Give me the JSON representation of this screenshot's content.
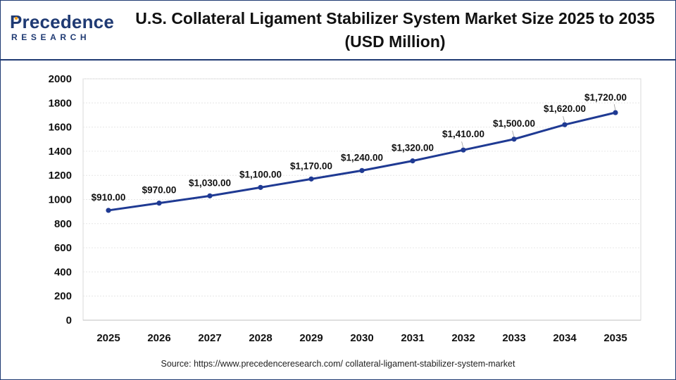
{
  "brand": {
    "name": "Precedence",
    "sub": "RESEARCH",
    "color": "#1f3a73",
    "accent": "#f5a21b"
  },
  "header": {
    "title": "U.S. Collateral Ligament Stabilizer System Market Size 2025 to 2035 (USD Million)"
  },
  "source": "Source: https://www.precedenceresearch.com/ collateral-ligament-stabilizer-system-market",
  "chart_data": {
    "type": "line",
    "title": "U.S. Collateral Ligament Stabilizer System Market Size 2025 to 2035 (USD Million)",
    "xlabel": "",
    "ylabel": "",
    "categories": [
      "2025",
      "2026",
      "2027",
      "2028",
      "2029",
      "2030",
      "2031",
      "2032",
      "2033",
      "2034",
      "2035"
    ],
    "series": [
      {
        "values": [
          910,
          970,
          1030,
          1100,
          1170,
          1240,
          1320,
          1410,
          1500,
          1620,
          1720
        ],
        "labels": [
          "$910.00",
          "$970.00",
          "$1,030.00",
          "$1,100.00",
          "$1,170.00",
          "$1,240.00",
          "$1,320.00",
          "$1,410.00",
          "$1,500.00",
          "$1,620.00",
          "$1,720.00"
        ],
        "color": "#1f3a93"
      }
    ],
    "ylim": [
      0,
      2000
    ],
    "yticks": [
      0,
      200,
      400,
      600,
      800,
      1000,
      1200,
      1400,
      1600,
      1800,
      2000
    ],
    "grid": true,
    "legend": "none"
  }
}
